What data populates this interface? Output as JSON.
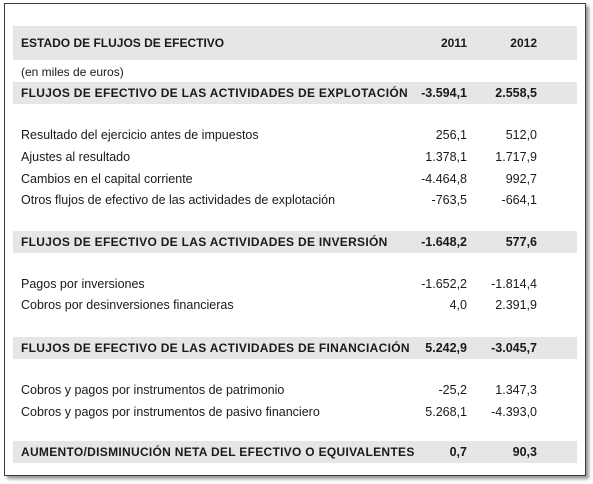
{
  "title": "ESTADO DE FLUJOS DE EFECTIVO",
  "years": [
    "2011",
    "2012"
  ],
  "unit_note": "(en miles de euros)",
  "sections": [
    {
      "title": "FLUJOS DE EFECTIVO DE LAS ACTIVIDADES DE EXPLOTACIÓN",
      "v2011": "-3.594,1",
      "v2012": "2.558,5",
      "items": [
        {
          "label": "Resultado del ejercicio antes de impuestos",
          "v2011": "256,1",
          "v2012": "512,0"
        },
        {
          "label": "Ajustes al resultado",
          "v2011": "1.378,1",
          "v2012": "1.717,9"
        },
        {
          "label": "Cambios en el capital corriente",
          "v2011": "-4.464,8",
          "v2012": "992,7"
        },
        {
          "label": "Otros flujos de efectivo de las actividades de explotación",
          "v2011": "-763,5",
          "v2012": "-664,1"
        }
      ]
    },
    {
      "title": "FLUJOS DE EFECTIVO DE LAS ACTIVIDADES DE INVERSIÓN",
      "v2011": "-1.648,2",
      "v2012": "577,6",
      "items": [
        {
          "label": "Pagos por inversiones",
          "v2011": "-1.652,2",
          "v2012": "-1.814,4"
        },
        {
          "label": "Cobros por desinversiones financieras",
          "v2011": "4,0",
          "v2012": "2.391,9"
        }
      ]
    },
    {
      "title": "FLUJOS DE EFECTIVO DE LAS ACTIVIDADES DE FINANCIACIÓN",
      "v2011": "5.242,9",
      "v2012": "-3.045,7",
      "items": [
        {
          "label": "Cobros y pagos por instrumentos de patrimonio",
          "v2011": "-25,2",
          "v2012": "1.347,3"
        },
        {
          "label": "Cobros y pagos por instrumentos de pasivo financiero",
          "v2011": "5.268,1",
          "v2012": "-4.393,0"
        }
      ]
    }
  ],
  "total": {
    "label": "AUMENTO/DISMINUCIÓN NETA DEL EFECTIVO O EQUIVALENTES",
    "v2011": "0,7",
    "v2012": "90,3"
  }
}
